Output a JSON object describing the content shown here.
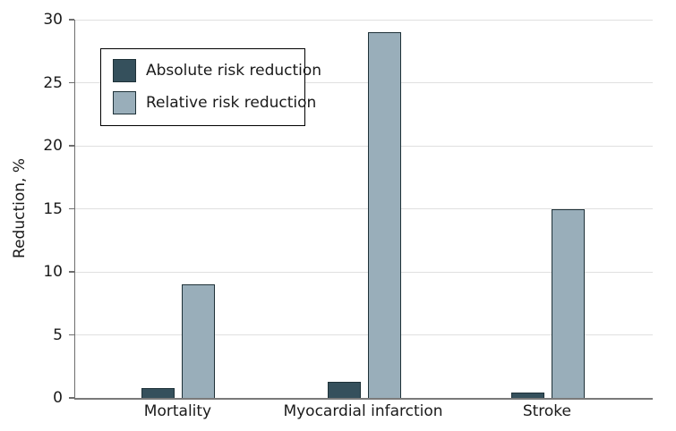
{
  "chart_data": {
    "type": "bar",
    "title": "",
    "xlabel": "",
    "ylabel": "Reduction, %",
    "categories": [
      "Mortality",
      "Myocardial infarction",
      "Stroke"
    ],
    "series": [
      {
        "name": "Absolute risk reduction",
        "values": [
          0.8,
          1.3,
          0.4
        ],
        "color": "#35505c"
      },
      {
        "name": "Relative risk reduction",
        "values": [
          9,
          29,
          15
        ],
        "color": "#99aeba"
      }
    ],
    "ylim": [
      0,
      30
    ],
    "yticks": [
      0,
      5,
      10,
      15,
      20,
      25,
      30
    ],
    "grid": "horizontal",
    "legend_position": "upper-left",
    "bar_border_color": "#1e3138",
    "gridline_color": "#e0e0e0",
    "axis_color": "#6e6e6e"
  }
}
